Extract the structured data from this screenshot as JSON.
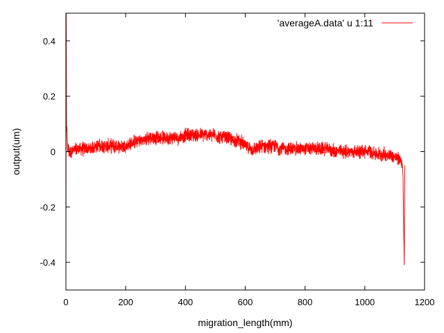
{
  "chart_data": {
    "type": "line",
    "xlabel": "migration_length(mm)",
    "ylabel": "output(um)",
    "xlim": [
      0,
      1200
    ],
    "ylim": [
      -0.5,
      0.5
    ],
    "xticks": [
      0,
      200,
      400,
      600,
      800,
      1000,
      1200
    ],
    "yticks": [
      -0.4,
      -0.2,
      0,
      0.2,
      0.4
    ],
    "xtick_labels": [
      "0",
      "200",
      "400",
      "600",
      "800",
      "1000",
      "1200"
    ],
    "ytick_labels": [
      "-0.4",
      "-0.2",
      "0",
      "0.2",
      "0.4"
    ],
    "grid": false,
    "legend_position": "top-right",
    "series": [
      {
        "name": "'averageA.data' u 1:11",
        "color": "#ff0000",
        "x": [
          0,
          1,
          2,
          3,
          5,
          10,
          20,
          40,
          60,
          80,
          100,
          120,
          140,
          160,
          180,
          200,
          220,
          240,
          260,
          280,
          300,
          320,
          340,
          360,
          380,
          400,
          420,
          440,
          460,
          480,
          500,
          520,
          540,
          560,
          580,
          600,
          620,
          640,
          660,
          680,
          700,
          720,
          740,
          760,
          780,
          800,
          820,
          840,
          860,
          880,
          900,
          920,
          940,
          960,
          980,
          1000,
          1020,
          1040,
          1060,
          1080,
          1100,
          1120,
          1125,
          1128,
          1130,
          1132,
          1134
        ],
        "y": [
          -0.5,
          0.5,
          0.1,
          0.08,
          0.02,
          0.0,
          0.0,
          0.01,
          0.01,
          0.01,
          0.02,
          0.02,
          0.02,
          0.02,
          0.02,
          0.02,
          0.03,
          0.04,
          0.04,
          0.05,
          0.05,
          0.05,
          0.05,
          0.05,
          0.05,
          0.06,
          0.06,
          0.06,
          0.06,
          0.06,
          0.06,
          0.05,
          0.05,
          0.04,
          0.04,
          0.02,
          0.01,
          0.01,
          0.02,
          0.02,
          0.02,
          0.01,
          0.01,
          0.01,
          0.01,
          0.01,
          0.01,
          0.01,
          0.01,
          0.01,
          0.0,
          0.0,
          0.0,
          0.0,
          0.0,
          0.0,
          0.0,
          -0.01,
          -0.01,
          -0.01,
          -0.02,
          -0.03,
          -0.04,
          -0.09,
          -0.26,
          -0.41,
          -0.05
        ]
      }
    ],
    "noise_amplitude": 0.03
  }
}
